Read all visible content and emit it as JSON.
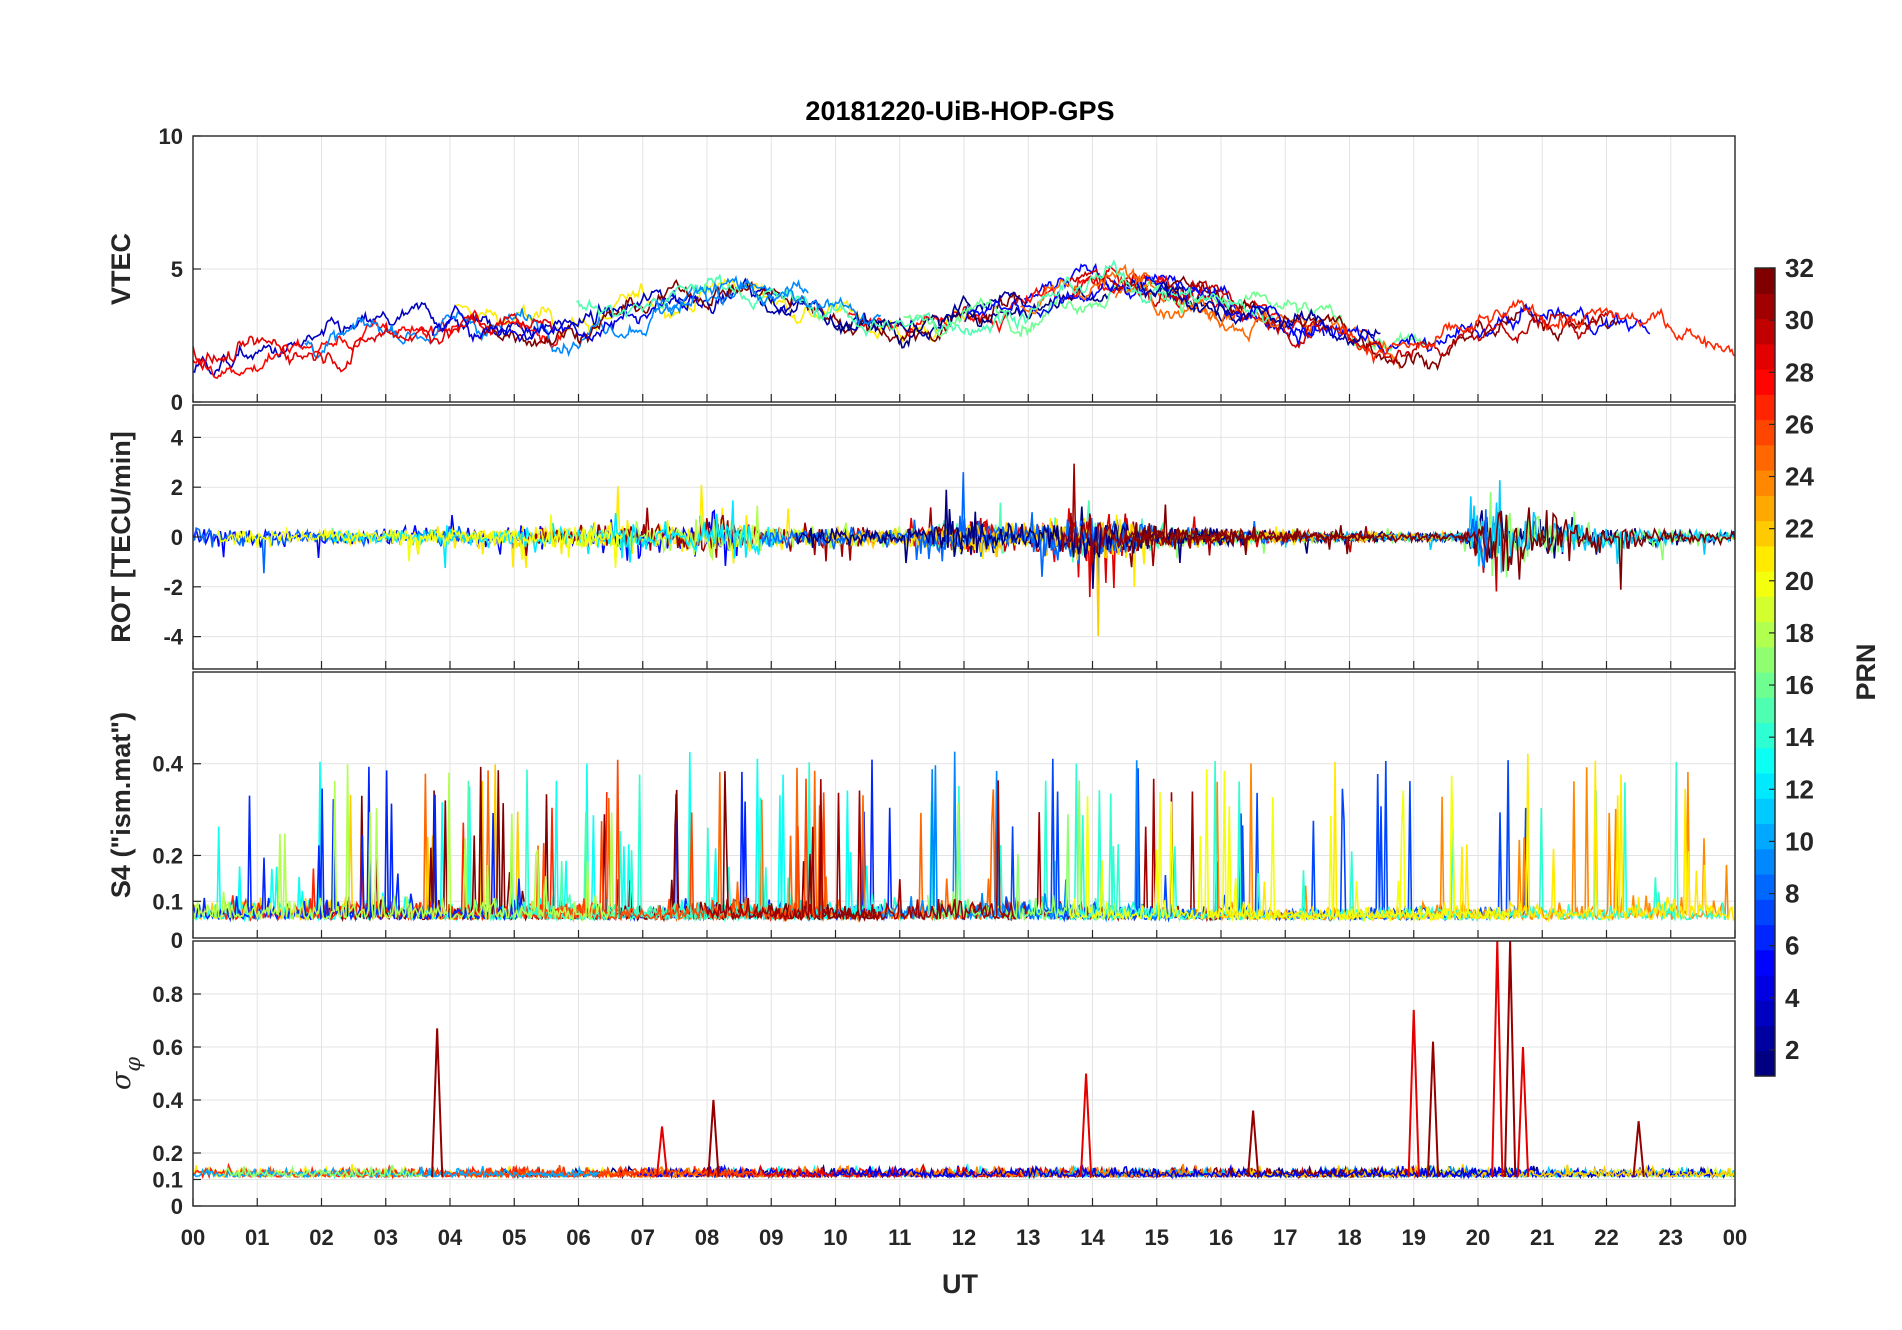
{
  "chart_data": {
    "type": "line",
    "title": "20181220-UiB-HOP-GPS",
    "xlabel": "UT",
    "x_ticks": [
      "00",
      "01",
      "02",
      "03",
      "04",
      "05",
      "06",
      "07",
      "08",
      "09",
      "10",
      "11",
      "12",
      "13",
      "14",
      "15",
      "16",
      "17",
      "18",
      "19",
      "20",
      "21",
      "22",
      "23",
      "00"
    ],
    "xlim": [
      0,
      24
    ],
    "grid": true,
    "colormap": "jet",
    "colorbar": {
      "label": "PRN",
      "range": [
        1,
        32
      ],
      "ticks": [
        "2",
        "4",
        "6",
        "8",
        "10",
        "12",
        "14",
        "16",
        "18",
        "20",
        "22",
        "24",
        "26",
        "28",
        "30",
        "32"
      ],
      "placement": "right"
    },
    "series_note_values": "Traces are coloured by satellite PRN (1–32); values approximated from the figure.",
    "panels": [
      {
        "id": "vtec",
        "ylabel": "VTEC",
        "ylim": [
          0,
          10
        ],
        "y_ticks": [
          0,
          5,
          10
        ],
        "y_tick_labels": [
          "0",
          "5",
          "10"
        ],
        "baseline": 2.6,
        "activity": [
          [
            0,
            1.6
          ],
          [
            1,
            1.8
          ],
          [
            2,
            2.2
          ],
          [
            3,
            2.8
          ],
          [
            4,
            3.0
          ],
          [
            5,
            2.9
          ],
          [
            6,
            3.1
          ],
          [
            7,
            3.8
          ],
          [
            8,
            4.6
          ],
          [
            8.5,
            4.3
          ],
          [
            9,
            3.6
          ],
          [
            10,
            3.1
          ],
          [
            11,
            2.6
          ],
          [
            12,
            3.5
          ],
          [
            13,
            3.9
          ],
          [
            14,
            4.8
          ],
          [
            15,
            4.2
          ],
          [
            16,
            3.4
          ],
          [
            17,
            3.0
          ],
          [
            18,
            2.3
          ],
          [
            19,
            1.8
          ],
          [
            20,
            2.9
          ],
          [
            21,
            3.3
          ],
          [
            22,
            2.9
          ],
          [
            23,
            2.7
          ],
          [
            24,
            2.4
          ]
        ]
      },
      {
        "id": "rot",
        "ylabel": "ROT [TECU/min]",
        "ylim": [
          -5.3,
          5.3
        ],
        "y_ticks": [
          -4,
          -2,
          0,
          2,
          4
        ],
        "y_tick_labels": [
          "-4",
          "-2",
          "0",
          "2",
          "4"
        ],
        "baseline": 0,
        "activity": [
          [
            0,
            0.35
          ],
          [
            3,
            0.25
          ],
          [
            6,
            0.5
          ],
          [
            7.5,
            0.6
          ],
          [
            8.2,
            0.9
          ],
          [
            9,
            0.4
          ],
          [
            11,
            0.3
          ],
          [
            12,
            0.7
          ],
          [
            13,
            0.5
          ],
          [
            14,
            0.9
          ],
          [
            15,
            0.4
          ],
          [
            17,
            0.2
          ],
          [
            19,
            0.15
          ],
          [
            19.8,
            0.2
          ],
          [
            20.2,
            1.6
          ],
          [
            21,
            1.0
          ],
          [
            22,
            0.5
          ],
          [
            23,
            0.3
          ],
          [
            24,
            0.2
          ]
        ]
      },
      {
        "id": "s4",
        "ylabel": "S4 (\"ism.mat\")",
        "ylim": [
          0.02,
          0.6
        ],
        "y_ticks": [
          0.1,
          0.2,
          0.4
        ],
        "y_tick_labels": [
          "0.1",
          "0.2",
          "0.4"
        ],
        "baseline": 0.09,
        "activity": [
          [
            0,
            0.12
          ],
          [
            2,
            0.12
          ],
          [
            4,
            0.1
          ],
          [
            5,
            0.12
          ],
          [
            7,
            0.08
          ],
          [
            8.6,
            0.12
          ],
          [
            10,
            0.08
          ],
          [
            11.5,
            0.12
          ],
          [
            13.5,
            0.1
          ],
          [
            15,
            0.09
          ],
          [
            17,
            0.06
          ],
          [
            18,
            0.07
          ],
          [
            20,
            0.08
          ],
          [
            21,
            0.09
          ],
          [
            22.5,
            0.11
          ],
          [
            24,
            0.1
          ]
        ]
      },
      {
        "id": "sigma_phi",
        "ylabel_symbol": "σ",
        "ylabel_sub": "φ",
        "ylim": [
          0,
          1
        ],
        "y_ticks": [
          0,
          0.1,
          0.2,
          0.4,
          0.6,
          0.8
        ],
        "y_tick_labels": [
          "0",
          "0.1",
          "0.2",
          "0.4",
          "0.6",
          "0.8"
        ],
        "baseline": 0.11,
        "spikes": [
          [
            3.8,
            0.67
          ],
          [
            7.3,
            0.3
          ],
          [
            8.1,
            0.4
          ],
          [
            13.9,
            0.5
          ],
          [
            16.5,
            0.36
          ],
          [
            19.0,
            0.74
          ],
          [
            19.3,
            0.62
          ],
          [
            20.3,
            1.0
          ],
          [
            20.5,
            1.0
          ],
          [
            20.7,
            0.6
          ],
          [
            22.5,
            0.32
          ]
        ]
      }
    ],
    "stray_tick_label": "0"
  }
}
